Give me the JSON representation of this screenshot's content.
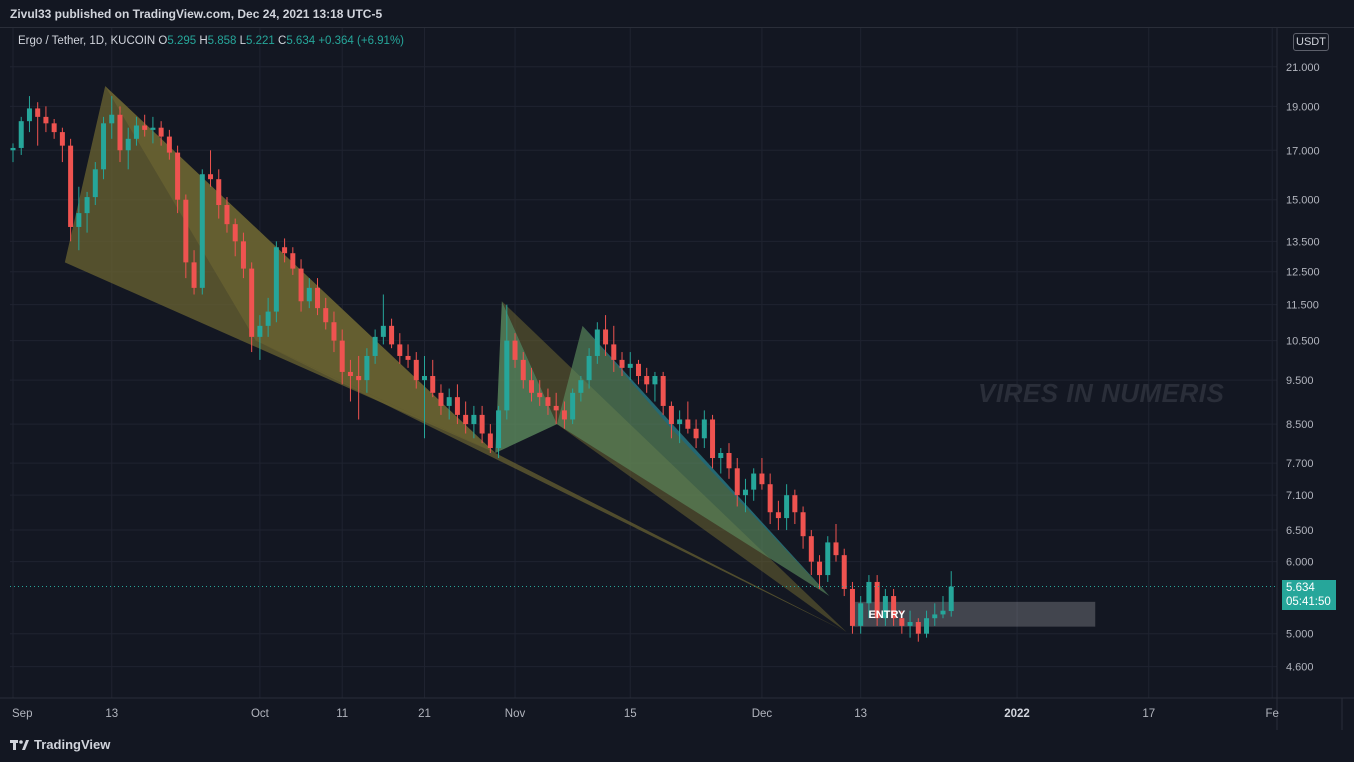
{
  "header": {
    "publisher": "Zivul33 published on TradingView.com, Dec 24, 2021 13:18 UTC-5"
  },
  "legend": {
    "symbol": "Ergo / Tether, 1D, KUCOIN",
    "o_label": "O",
    "o_value": "5.295",
    "h_label": "H",
    "h_value": "5.858",
    "l_label": "L",
    "l_value": "5.221",
    "c_label": "C",
    "c_value": "5.634",
    "change": "+0.364 (+6.91%)"
  },
  "price_scale": {
    "currency": "USDT",
    "last_price": "5.634",
    "countdown": "05:41:50"
  },
  "watermark": "VIRES IN NUMERIS",
  "annotation": "ENTRY",
  "footer": {
    "brand": "TradingView"
  },
  "colors": {
    "background": "#131722",
    "up": "#26a69a",
    "down": "#ef5350",
    "olive_fill": "#6b6432",
    "green_fill": "#5c8a5e",
    "teal_fill": "#1d6a7e"
  },
  "chart_data": {
    "type": "candlestick",
    "title": "Ergo / Tether, 1D, KUCOIN",
    "y_scale": "log",
    "ylim": [
      4.3,
      23.0
    ],
    "y_ticks": [
      21.0,
      19.0,
      17.0,
      15.0,
      13.5,
      12.5,
      11.5,
      10.5,
      9.5,
      8.5,
      7.7,
      7.1,
      6.5,
      6.0,
      5.0,
      4.6
    ],
    "y_tick_labels": [
      "21.000",
      "19.000",
      "17.000",
      "15.000",
      "13.500",
      "12.500",
      "11.500",
      "10.500",
      "9.500",
      "8.500",
      "7.700",
      "7.100",
      "6.500",
      "6.000",
      "5.000",
      "4.600"
    ],
    "x_ticks": [
      {
        "label": "Sep",
        "day": 0
      },
      {
        "label": "13",
        "day": 12
      },
      {
        "label": "Oct",
        "day": 30
      },
      {
        "label": "11",
        "day": 40
      },
      {
        "label": "21",
        "day": 50
      },
      {
        "label": "Nov",
        "day": 61
      },
      {
        "label": "15",
        "day": 75
      },
      {
        "label": "Dec",
        "day": 91
      },
      {
        "label": "13",
        "day": 103
      },
      {
        "label": "2022",
        "day": 122
      },
      {
        "label": "17",
        "day": 138
      },
      {
        "label": "Fe",
        "day": 153
      }
    ],
    "bold_x_labels": [
      "2022"
    ],
    "last_price": 5.634,
    "candles": [
      [
        17.0,
        17.3,
        16.5,
        17.1
      ],
      [
        17.1,
        18.5,
        16.8,
        18.3
      ],
      [
        18.3,
        19.5,
        17.8,
        18.9
      ],
      [
        18.9,
        19.2,
        17.2,
        18.5
      ],
      [
        18.5,
        19.0,
        17.8,
        18.2
      ],
      [
        18.2,
        18.4,
        17.5,
        17.8
      ],
      [
        17.8,
        18.0,
        16.5,
        17.2
      ],
      [
        17.2,
        17.5,
        13.5,
        14.0
      ],
      [
        14.0,
        15.5,
        13.2,
        14.5
      ],
      [
        14.5,
        15.3,
        13.8,
        15.1
      ],
      [
        15.1,
        16.5,
        14.8,
        16.2
      ],
      [
        16.2,
        18.5,
        15.8,
        18.2
      ],
      [
        18.2,
        19.5,
        17.5,
        18.6
      ],
      [
        18.6,
        19.0,
        16.5,
        17.0
      ],
      [
        17.0,
        18.0,
        16.2,
        17.5
      ],
      [
        17.5,
        18.5,
        17.2,
        18.1
      ],
      [
        18.1,
        18.6,
        17.6,
        17.9
      ],
      [
        17.9,
        18.5,
        17.3,
        18.0
      ],
      [
        18.0,
        18.3,
        17.2,
        17.6
      ],
      [
        17.6,
        17.9,
        16.6,
        16.9
      ],
      [
        16.9,
        17.2,
        14.5,
        15.0
      ],
      [
        15.0,
        15.2,
        12.3,
        12.8
      ],
      [
        12.8,
        13.2,
        11.8,
        12.0
      ],
      [
        12.0,
        16.2,
        11.8,
        16.0
      ],
      [
        16.0,
        17.0,
        15.5,
        15.8
      ],
      [
        15.8,
        16.2,
        14.3,
        14.8
      ],
      [
        14.8,
        15.1,
        13.8,
        14.1
      ],
      [
        14.1,
        14.3,
        13.0,
        13.5
      ],
      [
        13.5,
        13.8,
        12.3,
        12.6
      ],
      [
        12.6,
        12.8,
        10.2,
        10.6
      ],
      [
        10.6,
        11.2,
        10.0,
        10.9
      ],
      [
        10.9,
        11.7,
        10.6,
        11.3
      ],
      [
        11.3,
        13.5,
        11.0,
        13.3
      ],
      [
        13.3,
        13.6,
        12.8,
        13.1
      ],
      [
        13.1,
        13.3,
        12.4,
        12.6
      ],
      [
        12.6,
        12.9,
        11.3,
        11.6
      ],
      [
        11.6,
        12.3,
        11.4,
        12.0
      ],
      [
        12.0,
        12.3,
        11.2,
        11.4
      ],
      [
        11.4,
        11.7,
        10.8,
        11.0
      ],
      [
        11.0,
        11.3,
        10.2,
        10.5
      ],
      [
        10.5,
        10.8,
        9.4,
        9.7
      ],
      [
        9.7,
        10.0,
        9.0,
        9.6
      ],
      [
        9.6,
        10.1,
        8.6,
        9.5
      ],
      [
        9.5,
        10.3,
        9.2,
        10.1
      ],
      [
        10.1,
        10.8,
        9.9,
        10.6
      ],
      [
        10.6,
        11.8,
        10.4,
        10.9
      ],
      [
        10.9,
        11.1,
        10.3,
        10.4
      ],
      [
        10.4,
        10.7,
        9.9,
        10.1
      ],
      [
        10.1,
        10.4,
        9.8,
        10.0
      ],
      [
        10.0,
        10.2,
        9.3,
        9.5
      ],
      [
        9.5,
        10.1,
        8.2,
        9.6
      ],
      [
        9.6,
        10.0,
        9.1,
        9.2
      ],
      [
        9.2,
        9.4,
        8.7,
        8.9
      ],
      [
        8.9,
        9.3,
        8.6,
        9.1
      ],
      [
        9.1,
        9.4,
        8.5,
        8.7
      ],
      [
        8.7,
        9.0,
        8.3,
        8.5
      ],
      [
        8.5,
        8.9,
        8.2,
        8.7
      ],
      [
        8.7,
        8.9,
        8.1,
        8.3
      ],
      [
        8.3,
        8.5,
        7.9,
        8.0
      ],
      [
        8.0,
        8.9,
        7.8,
        8.8
      ],
      [
        8.8,
        11.5,
        8.6,
        10.5
      ],
      [
        10.5,
        10.7,
        9.8,
        10.0
      ],
      [
        10.0,
        10.2,
        9.3,
        9.5
      ],
      [
        9.5,
        9.8,
        9.0,
        9.2
      ],
      [
        9.2,
        9.5,
        8.9,
        9.1
      ],
      [
        9.1,
        9.3,
        8.7,
        8.9
      ],
      [
        8.9,
        9.2,
        8.5,
        8.8
      ],
      [
        8.8,
        9.0,
        8.4,
        8.6
      ],
      [
        8.6,
        9.3,
        8.5,
        9.2
      ],
      [
        9.2,
        9.6,
        9.0,
        9.5
      ],
      [
        9.5,
        10.3,
        9.3,
        10.1
      ],
      [
        10.1,
        11.0,
        9.9,
        10.8
      ],
      [
        10.8,
        11.2,
        10.1,
        10.4
      ],
      [
        10.4,
        10.9,
        9.7,
        10.0
      ],
      [
        10.0,
        10.2,
        9.6,
        9.8
      ],
      [
        9.8,
        10.2,
        9.5,
        9.9
      ],
      [
        9.9,
        10.0,
        9.4,
        9.6
      ],
      [
        9.6,
        9.8,
        9.2,
        9.4
      ],
      [
        9.4,
        9.7,
        9.0,
        9.6
      ],
      [
        9.6,
        9.7,
        8.7,
        8.9
      ],
      [
        8.9,
        9.0,
        8.2,
        8.5
      ],
      [
        8.5,
        8.8,
        8.1,
        8.6
      ],
      [
        8.6,
        9.0,
        8.3,
        8.4
      ],
      [
        8.4,
        8.6,
        8.0,
        8.2
      ],
      [
        8.2,
        8.8,
        8.0,
        8.6
      ],
      [
        8.6,
        8.7,
        7.6,
        7.8
      ],
      [
        7.8,
        8.0,
        7.5,
        7.9
      ],
      [
        7.9,
        8.1,
        7.4,
        7.6
      ],
      [
        7.6,
        7.8,
        6.9,
        7.1
      ],
      [
        7.1,
        7.4,
        6.8,
        7.2
      ],
      [
        7.2,
        7.6,
        7.0,
        7.5
      ],
      [
        7.5,
        7.8,
        7.2,
        7.3
      ],
      [
        7.3,
        7.5,
        6.6,
        6.8
      ],
      [
        6.8,
        7.0,
        6.5,
        6.7
      ],
      [
        6.7,
        7.3,
        6.5,
        7.1
      ],
      [
        7.1,
        7.2,
        6.6,
        6.8
      ],
      [
        6.8,
        6.9,
        6.2,
        6.4
      ],
      [
        6.4,
        6.5,
        5.8,
        6.0
      ],
      [
        6.0,
        6.1,
        5.6,
        5.8
      ],
      [
        5.8,
        6.4,
        5.7,
        6.3
      ],
      [
        6.3,
        6.6,
        6.0,
        6.1
      ],
      [
        6.1,
        6.2,
        5.5,
        5.6
      ],
      [
        5.6,
        5.7,
        5.0,
        5.1
      ],
      [
        5.1,
        5.5,
        5.0,
        5.4
      ],
      [
        5.4,
        5.8,
        5.2,
        5.7
      ],
      [
        5.7,
        5.8,
        5.1,
        5.2
      ],
      [
        5.2,
        5.6,
        5.1,
        5.5
      ],
      [
        5.5,
        5.6,
        5.1,
        5.2
      ],
      [
        5.2,
        5.3,
        5.0,
        5.1
      ],
      [
        5.1,
        5.3,
        4.95,
        5.15
      ],
      [
        5.15,
        5.2,
        4.9,
        5.0
      ],
      [
        5.0,
        5.3,
        4.95,
        5.2
      ],
      [
        5.2,
        5.4,
        5.1,
        5.25
      ],
      [
        5.25,
        5.5,
        5.2,
        5.3
      ],
      [
        5.295,
        5.858,
        5.221,
        5.634
      ]
    ]
  }
}
